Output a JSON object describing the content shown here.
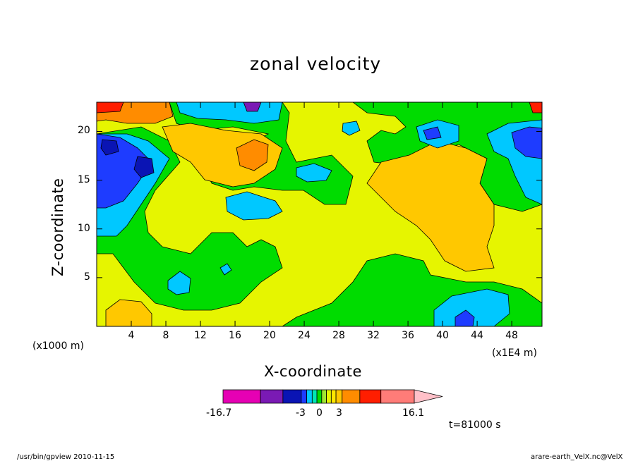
{
  "chart_data": {
    "type": "heatmap",
    "title": "zonal velocity",
    "xlabel": "X-coordinate",
    "ylabel": "Z-coordinate",
    "x_unit_left": "(x1000 m)",
    "x_unit_right": "(x1E4 m)",
    "xlim": [
      0,
      51.5
    ],
    "ylim": [
      0,
      23
    ],
    "x_ticks": [
      4,
      8,
      12,
      16,
      20,
      24,
      28,
      32,
      36,
      40,
      44,
      48
    ],
    "y_ticks": [
      5,
      10,
      15,
      20
    ],
    "colorbar": {
      "min_label": "-16.7",
      "max_label": "16.1",
      "mid_labels": [
        "-3",
        "0",
        "3"
      ],
      "levels": [
        -16.7,
        -13,
        -9,
        -5,
        -3,
        -2,
        -1,
        0,
        1,
        2,
        3,
        5,
        9,
        13,
        16.1
      ],
      "colors": [
        "#e600b4",
        "#7a1ab4",
        "#0a14b4",
        "#1e3cff",
        "#00c8ff",
        "#00e6b4",
        "#00dc00",
        "#a0e632",
        "#e6f500",
        "#ffe600",
        "#ffc800",
        "#ff8c00",
        "#ff1e00",
        "#ff7c78",
        "#ffc0c8"
      ]
    },
    "time_label": "t=81000 s",
    "grid": false
  },
  "footer": {
    "left": "/usr/bin/gpview  2010-11-15",
    "right": "arare-earth_VelX.nc@VelX"
  }
}
